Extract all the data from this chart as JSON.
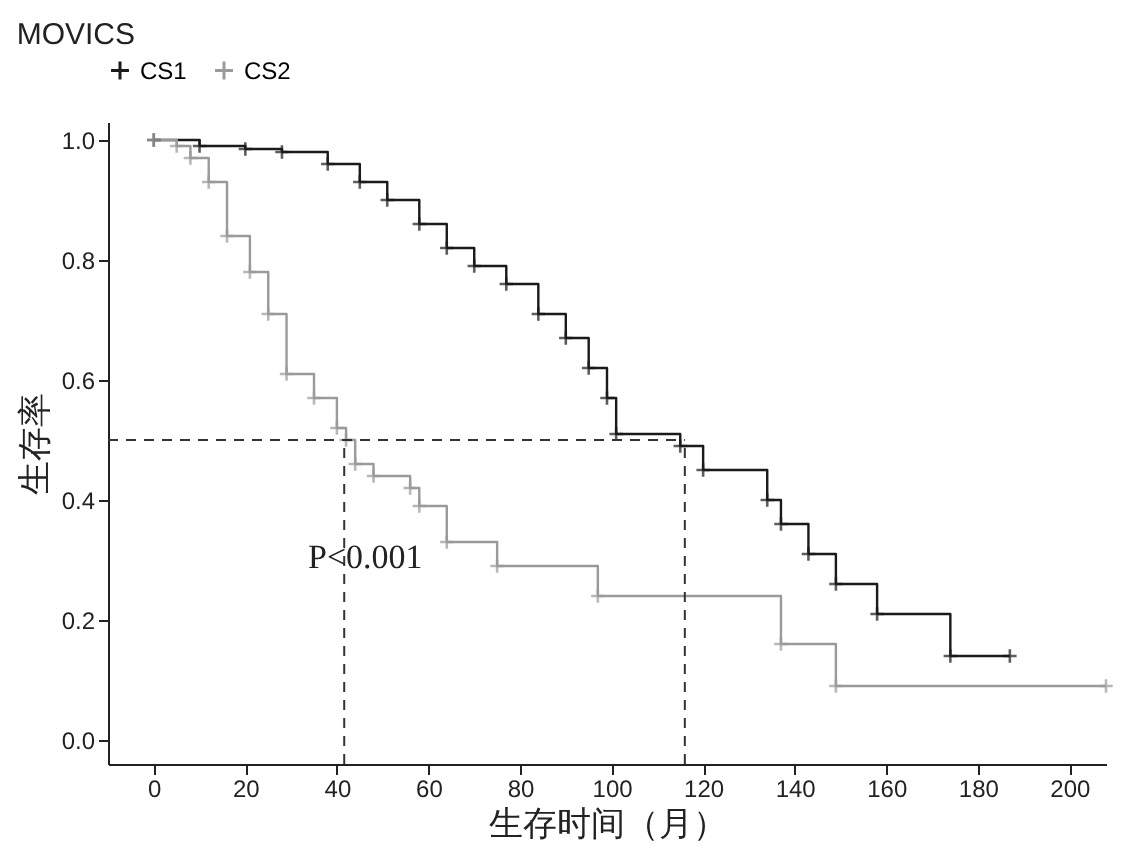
{
  "chart_data": {
    "type": "step",
    "title": "MOVICS",
    "xlabel": "生存时间（月）",
    "ylabel": "生存率",
    "xlim": [
      -10,
      208
    ],
    "xticks": [
      0,
      20,
      40,
      60,
      80,
      100,
      120,
      140,
      160,
      180,
      200
    ],
    "ylim": [
      -0.04,
      1.03
    ],
    "yticks": [
      {
        "value": 0,
        "label": "0.0"
      },
      0.2,
      0.4,
      0.6,
      0.8,
      {
        "value": 1,
        "label": "1.0"
      }
    ],
    "grid": false,
    "legend": "top",
    "marker": "cross",
    "line_style": "solid",
    "series": [
      {
        "name": "CS1",
        "color": "#1a1a1a",
        "x": [
          0,
          10,
          20,
          28,
          38,
          45,
          51,
          58,
          64,
          70,
          77,
          84,
          90,
          95,
          99,
          101,
          115,
          120,
          134,
          137,
          143,
          149,
          158,
          174,
          187
        ],
        "values": [
          1.0,
          0.99,
          0.985,
          0.98,
          0.96,
          0.93,
          0.9,
          0.86,
          0.82,
          0.79,
          0.76,
          0.71,
          0.67,
          0.62,
          0.57,
          0.51,
          0.49,
          0.45,
          0.4,
          0.36,
          0.31,
          0.26,
          0.21,
          0.14,
          0.14
        ]
      },
      {
        "name": "CS2",
        "color": "#9a9a9a",
        "x": [
          0,
          5,
          8,
          12,
          16,
          21,
          25,
          29,
          35,
          40,
          42,
          44,
          48,
          56,
          58,
          64,
          75,
          97,
          137,
          149,
          208
        ],
        "values": [
          1.0,
          0.99,
          0.97,
          0.93,
          0.84,
          0.78,
          0.71,
          0.61,
          0.57,
          0.52,
          0.5,
          0.46,
          0.44,
          0.42,
          0.39,
          0.33,
          0.29,
          0.24,
          0.16,
          0.09,
          0.09
        ]
      }
    ],
    "ref_lines": [
      {
        "axis": "y",
        "value": 0.5,
        "line_style": "dashed"
      },
      {
        "axis": "x",
        "value": 41.6,
        "line_style": "dashed"
      },
      {
        "axis": "x",
        "value": 116,
        "line_style": "dashed"
      }
    ],
    "annotations": [
      "P<0.001"
    ]
  }
}
